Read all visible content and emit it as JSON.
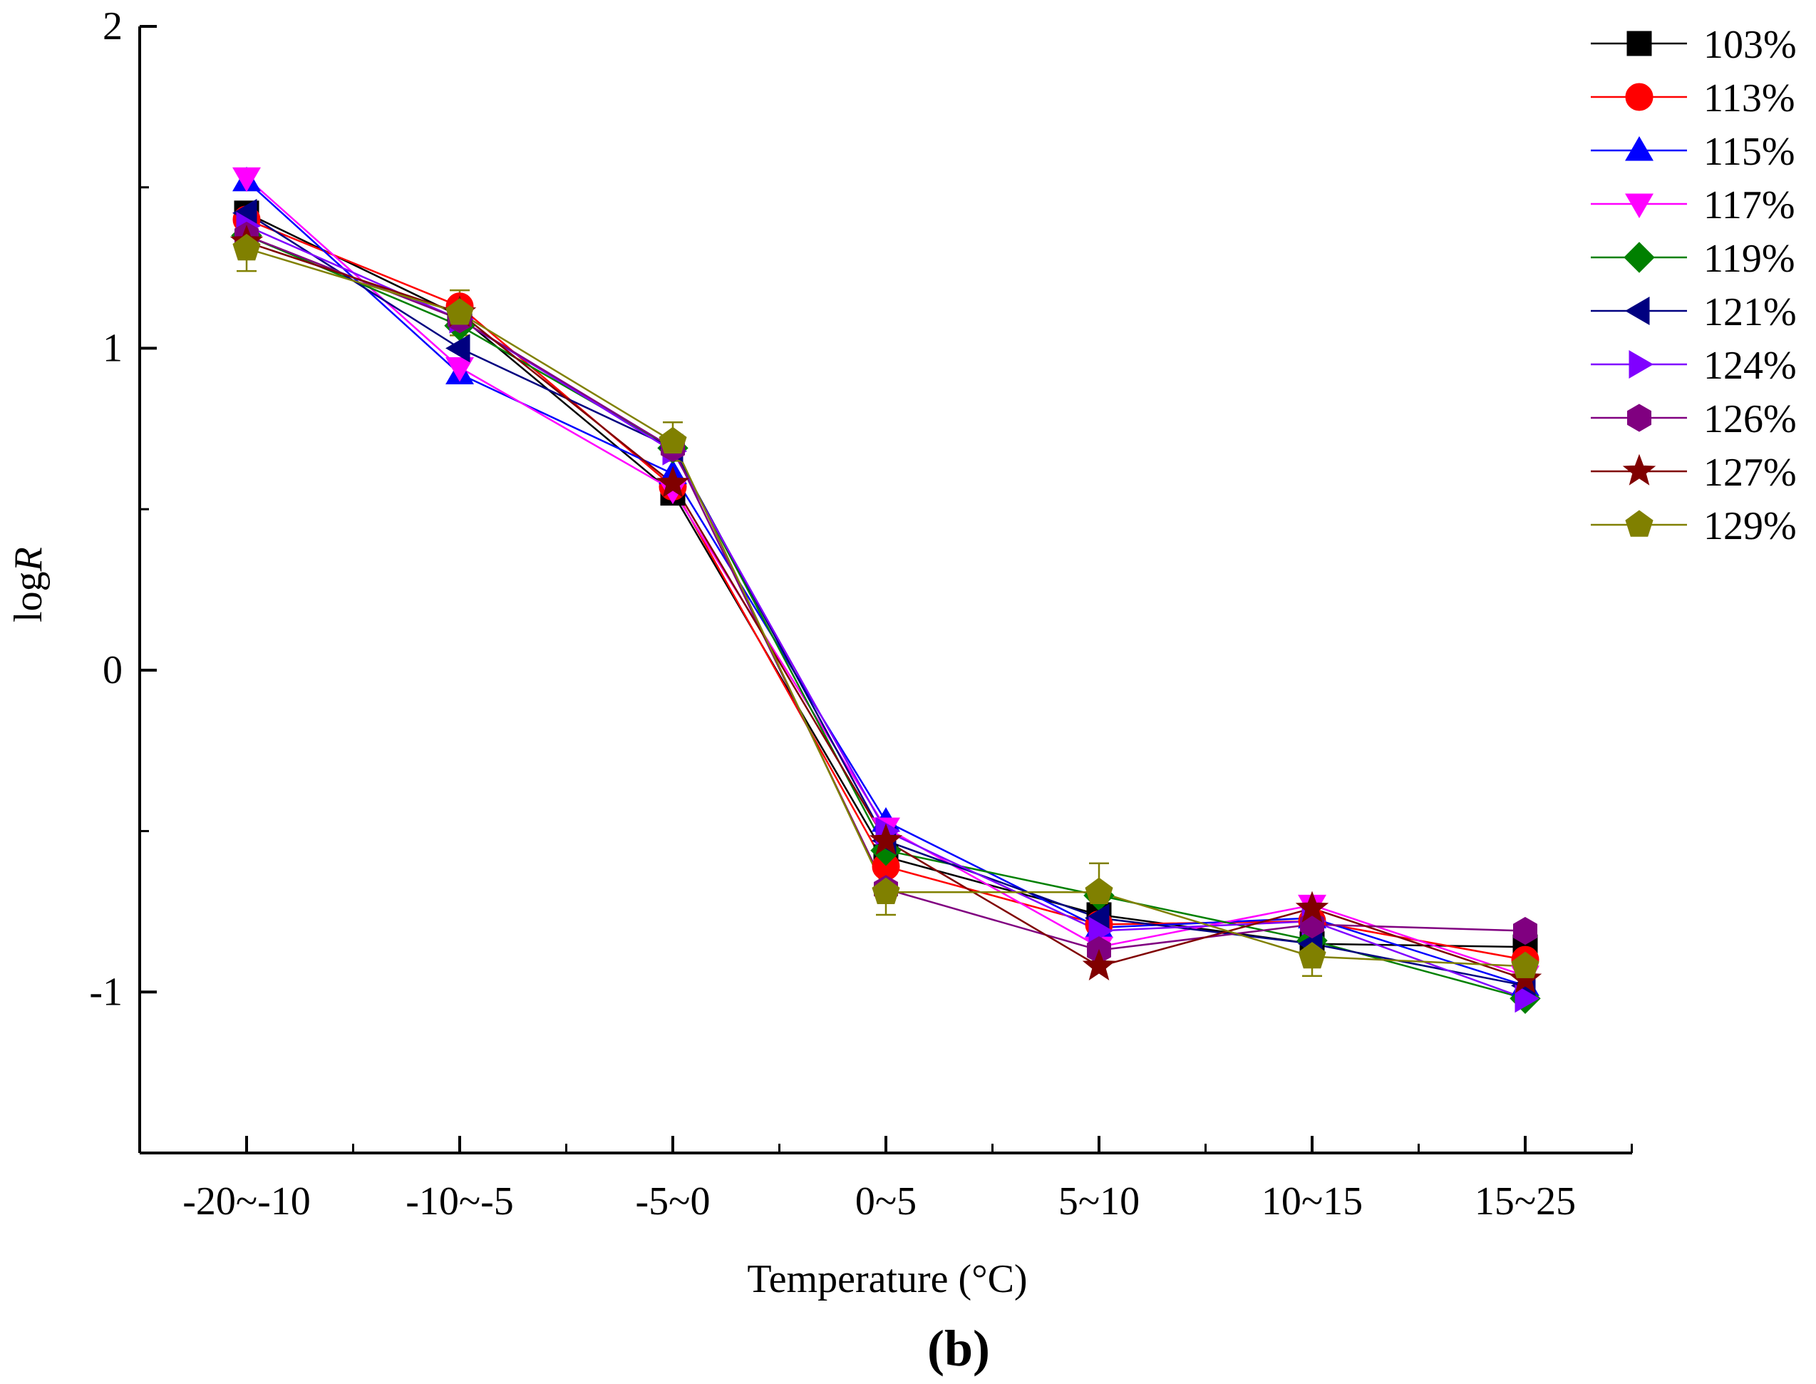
{
  "chart_data": {
    "type": "line",
    "title": "",
    "panel_label": "(b)",
    "xlabel": "Temperature (°C)",
    "ylabel_prefix": "log",
    "ylabel_var": "R",
    "categories": [
      "-20~-10",
      "-10~-5",
      "-5~0",
      "0~5",
      "5~10",
      "10~15",
      "15~25"
    ],
    "yticks": [
      -1,
      0,
      1,
      2
    ],
    "ylim": [
      -1.5,
      2.0
    ],
    "legend_position": "top-right",
    "series": [
      {
        "name": "103%",
        "color": "#000000",
        "marker": "square",
        "values": [
          1.42,
          1.1,
          0.55,
          -0.58,
          -0.76,
          -0.85,
          -0.86
        ]
      },
      {
        "name": "113%",
        "color": "#ff0000",
        "marker": "circle",
        "values": [
          1.4,
          1.13,
          0.57,
          -0.61,
          -0.79,
          -0.78,
          -0.9
        ]
      },
      {
        "name": "115%",
        "color": "#0000ff",
        "marker": "triangle-up",
        "values": [
          1.52,
          0.92,
          0.61,
          -0.47,
          -0.8,
          -0.77,
          -0.98
        ]
      },
      {
        "name": "117%",
        "color": "#ff00ff",
        "marker": "triangle-down",
        "values": [
          1.53,
          0.94,
          0.56,
          -0.49,
          -0.86,
          -0.73,
          -0.95
        ]
      },
      {
        "name": "119%",
        "color": "#008000",
        "marker": "diamond",
        "values": [
          1.35,
          1.07,
          0.69,
          -0.56,
          -0.7,
          -0.84,
          -1.02
        ]
      },
      {
        "name": "121%",
        "color": "#000080",
        "marker": "triangle-left",
        "values": [
          1.42,
          1.0,
          0.69,
          -0.53,
          -0.77,
          -0.85,
          -0.98
        ]
      },
      {
        "name": "124%",
        "color": "#8000ff",
        "marker": "triangle-right",
        "values": [
          1.38,
          1.09,
          0.68,
          -0.5,
          -0.81,
          -0.78,
          -1.02
        ]
      },
      {
        "name": "126%",
        "color": "#800080",
        "marker": "hexagon",
        "values": [
          1.35,
          1.09,
          0.69,
          -0.68,
          -0.87,
          -0.79,
          -0.81
        ]
      },
      {
        "name": "127%",
        "color": "#800000",
        "marker": "star",
        "values": [
          1.33,
          1.11,
          0.58,
          -0.53,
          -0.92,
          -0.74,
          -0.96
        ]
      },
      {
        "name": "129%",
        "color": "#808000",
        "marker": "pentagon",
        "values": [
          1.31,
          1.11,
          0.71,
          -0.69,
          -0.69,
          -0.89,
          -0.92
        ]
      }
    ],
    "error_bars": [
      {
        "series": "129%",
        "index": 0,
        "err": 0.07
      },
      {
        "series": "129%",
        "index": 1,
        "err": 0.07
      },
      {
        "series": "129%",
        "index": 2,
        "err": 0.06
      },
      {
        "series": "129%",
        "index": 3,
        "err": 0.07
      },
      {
        "series": "129%",
        "index": 4,
        "err": 0.09
      },
      {
        "series": "129%",
        "index": 5,
        "err": 0.06
      }
    ]
  }
}
